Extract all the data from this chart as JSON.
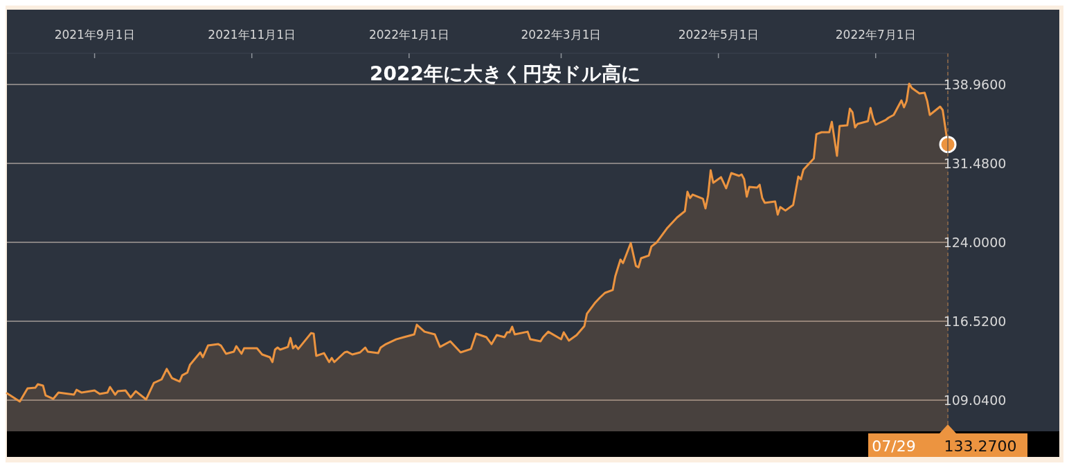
{
  "chart_data": {
    "type": "area",
    "title": "2022年に大きく円安ドル高に",
    "x": [
      "2021-07-29",
      "2021-08-03",
      "2021-08-06",
      "2021-08-09",
      "2021-08-10",
      "2021-08-12",
      "2021-08-13",
      "2021-08-16",
      "2021-08-18",
      "2021-08-24",
      "2021-08-25",
      "2021-08-27",
      "2021-09-01",
      "2021-09-03",
      "2021-09-06",
      "2021-09-07",
      "2021-09-09",
      "2021-09-10",
      "2021-09-13",
      "2021-09-15",
      "2021-09-17",
      "2021-09-21",
      "2021-09-24",
      "2021-09-27",
      "2021-09-29",
      "2021-10-01",
      "2021-10-04",
      "2021-10-05",
      "2021-10-07",
      "2021-10-08",
      "2021-10-12",
      "2021-10-13",
      "2021-10-15",
      "2021-10-19",
      "2021-10-20",
      "2021-10-22",
      "2021-10-25",
      "2021-10-26",
      "2021-10-28",
      "2021-10-29",
      "2021-11-03",
      "2021-11-05",
      "2021-11-08",
      "2021-11-09",
      "2021-11-10",
      "2021-11-11",
      "2021-11-12",
      "2021-11-15",
      "2021-11-16",
      "2021-11-17",
      "2021-11-18",
      "2021-11-19",
      "2021-11-24",
      "2021-11-25",
      "2021-11-26",
      "2021-11-29",
      "2021-12-01",
      "2021-12-02",
      "2021-12-03",
      "2021-12-07",
      "2021-12-08",
      "2021-12-10",
      "2021-12-13",
      "2021-12-15",
      "2021-12-16",
      "2021-12-20",
      "2021-12-21",
      "2021-12-23",
      "2021-12-27",
      "2021-12-30",
      "2022-01-03",
      "2022-01-04",
      "2022-01-07",
      "2022-01-11",
      "2022-01-13",
      "2022-01-17",
      "2022-01-21",
      "2022-01-25",
      "2022-01-27",
      "2022-01-31",
      "2022-02-02",
      "2022-02-04",
      "2022-02-07",
      "2022-02-08",
      "2022-02-09",
      "2022-02-10",
      "2022-02-11",
      "2022-02-16",
      "2022-02-17",
      "2022-02-21",
      "2022-02-22",
      "2022-02-24",
      "2022-03-01",
      "2022-03-02",
      "2022-03-04",
      "2022-03-07",
      "2022-03-10",
      "2022-03-11",
      "2022-03-14",
      "2022-03-16",
      "2022-03-18",
      "2022-03-21",
      "2022-03-22",
      "2022-03-24",
      "2022-03-25",
      "2022-03-28",
      "2022-03-30",
      "2022-03-31",
      "2022-04-01",
      "2022-04-04",
      "2022-04-05",
      "2022-04-07",
      "2022-04-11",
      "2022-04-15",
      "2022-04-18",
      "2022-04-19",
      "2022-04-20",
      "2022-04-21",
      "2022-04-25",
      "2022-04-26",
      "2022-04-27",
      "2022-04-28",
      "2022-04-29",
      "2022-05-02",
      "2022-05-04",
      "2022-05-06",
      "2022-05-09",
      "2022-05-10",
      "2022-05-11",
      "2022-05-12",
      "2022-05-13",
      "2022-05-16",
      "2022-05-17",
      "2022-05-18",
      "2022-05-19",
      "2022-05-23",
      "2022-05-24",
      "2022-05-25",
      "2022-05-27",
      "2022-05-30",
      "2022-06-01",
      "2022-06-02",
      "2022-06-03",
      "2022-06-07",
      "2022-06-08",
      "2022-06-10",
      "2022-06-13",
      "2022-06-14",
      "2022-06-16",
      "2022-06-17",
      "2022-06-20",
      "2022-06-21",
      "2022-06-22",
      "2022-06-23",
      "2022-06-24",
      "2022-06-28",
      "2022-06-29",
      "2022-06-30",
      "2022-07-01",
      "2022-07-05",
      "2022-07-06",
      "2022-07-08",
      "2022-07-11",
      "2022-07-12",
      "2022-07-13",
      "2022-07-14",
      "2022-07-15",
      "2022-07-18",
      "2022-07-20",
      "2022-07-21",
      "2022-07-22",
      "2022-07-26",
      "2022-07-27",
      "2022-07-29"
    ],
    "series": [
      {
        "color": "#ec9440",
        "values": [
          109.7,
          108.91,
          110.16,
          110.22,
          110.55,
          110.42,
          109.5,
          109.17,
          109.76,
          109.56,
          110.02,
          109.76,
          109.96,
          109.63,
          109.76,
          110.29,
          109.56,
          109.89,
          109.96,
          109.3,
          109.89,
          109.11,
          110.68,
          111.01,
          112.0,
          111.14,
          110.81,
          111.4,
          111.66,
          112.39,
          113.57,
          113.11,
          114.22,
          114.35,
          114.22,
          113.44,
          113.63,
          114.16,
          113.44,
          113.96,
          113.96,
          113.37,
          113.11,
          112.65,
          113.83,
          114.03,
          113.83,
          114.09,
          114.94,
          113.96,
          114.22,
          113.89,
          115.4,
          115.34,
          113.24,
          113.5,
          112.65,
          113.04,
          112.65,
          113.57,
          113.63,
          113.37,
          113.57,
          114.03,
          113.63,
          113.5,
          114.03,
          114.35,
          114.81,
          115.01,
          115.27,
          116.19,
          115.53,
          115.27,
          114.09,
          114.62,
          113.57,
          113.89,
          115.34,
          115.01,
          114.35,
          115.21,
          115.01,
          115.47,
          115.47,
          116.0,
          115.27,
          115.53,
          114.81,
          114.62,
          115.01,
          115.53,
          114.81,
          115.47,
          114.68,
          115.21,
          116.06,
          117.24,
          118.22,
          118.75,
          119.21,
          119.48,
          120.79,
          122.36,
          122.03,
          123.93,
          121.76,
          121.63,
          122.49,
          122.75,
          123.6,
          123.98,
          125.31,
          126.36,
          126.95,
          128.79,
          128.2,
          128.52,
          128.13,
          127.21,
          128.46,
          130.82,
          129.64,
          130.17,
          129.12,
          130.56,
          130.3,
          130.43,
          129.97,
          128.33,
          129.25,
          129.18,
          129.45,
          128.2,
          127.74,
          127.87,
          126.62,
          127.34,
          127.01,
          127.54,
          130.23,
          129.97,
          130.89,
          131.94,
          134.24,
          134.43,
          134.43,
          135.42,
          132.2,
          135.02,
          135.09,
          136.66,
          136.33,
          134.89,
          135.22,
          135.48,
          136.73,
          135.74,
          135.15,
          135.61,
          135.81,
          136.07,
          137.45,
          136.79,
          137.38,
          139.03,
          138.63,
          138.11,
          138.17,
          137.38,
          136.07,
          136.86,
          136.53,
          133.27
        ]
      },
      {
        "type": "scatter",
        "color": "#ec9440",
        "x": [
          "2022-07-29"
        ],
        "values": [
          133.27
        ]
      }
    ],
    "xlim": [
      "2021-07-29",
      "2022-07-29"
    ],
    "xticks": [
      {
        "value": "2021-09-01",
        "label": "2021年9月1日"
      },
      {
        "value": "2021-11-01",
        "label": "2021年11月1日"
      },
      {
        "value": "2022-01-01",
        "label": "2022年1月1日"
      },
      {
        "value": "2022-03-01",
        "label": "2022年3月1日"
      },
      {
        "value": "2022-05-01",
        "label": "2022年5月1日"
      },
      {
        "value": "2022-07-01",
        "label": "2022年7月1日"
      }
    ],
    "ylim": [
      106.09,
      141.91
    ],
    "yticks": [
      {
        "value": 109.04,
        "label": "109.0400"
      },
      {
        "value": 116.52,
        "label": "116.5200"
      },
      {
        "value": 124,
        "label": "124.0000"
      },
      {
        "value": 131.48,
        "label": "131.4800"
      },
      {
        "value": 138.96,
        "label": "138.9600"
      }
    ],
    "grid": "y",
    "ref_lines": [
      {
        "axis": "x",
        "value": "2022-07-29",
        "color": "#ec9440",
        "line_style": "dashed"
      }
    ],
    "annotations": [
      "07/29",
      "133.2700"
    ]
  }
}
